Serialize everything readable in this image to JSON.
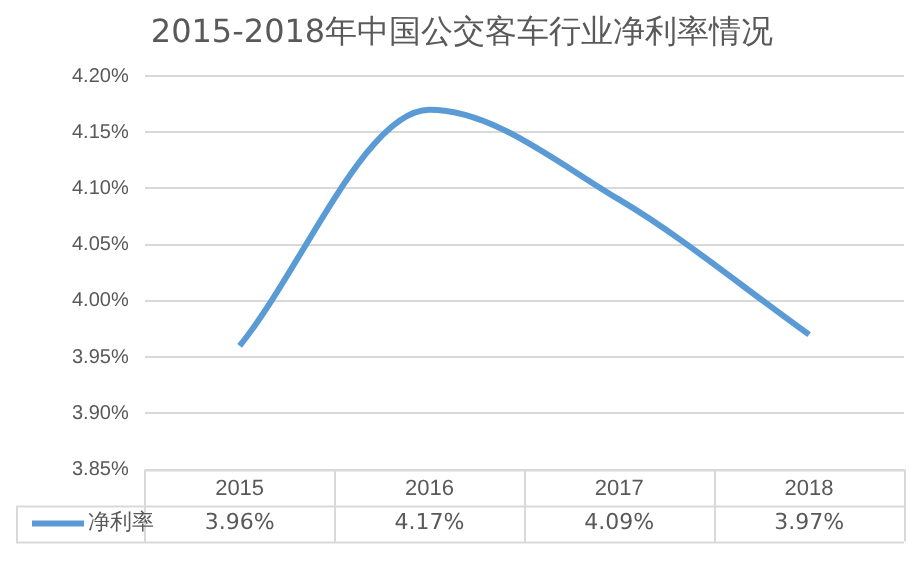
{
  "chart_data": {
    "type": "line",
    "title": "2015-2018年中国公交客车行业净利率情况",
    "categories": [
      "2015",
      "2016",
      "2017",
      "2018"
    ],
    "series": [
      {
        "name": "净利率",
        "color": "#5b9bd5",
        "values": [
          3.96,
          4.17,
          4.09,
          3.97
        ],
        "value_labels": [
          "3.96%",
          "4.17%",
          "4.09%",
          "3.97%"
        ]
      }
    ],
    "ylim": [
      3.85,
      4.2
    ],
    "yticks": [
      {
        "value": 3.85,
        "label": "3.85%"
      },
      {
        "value": 3.9,
        "label": "3.90%"
      },
      {
        "value": 3.95,
        "label": "3.95%"
      },
      {
        "value": 4.0,
        "label": "4.00%"
      },
      {
        "value": 4.05,
        "label": "4.05%"
      },
      {
        "value": 4.1,
        "label": "4.10%"
      },
      {
        "value": 4.15,
        "label": "4.15%"
      },
      {
        "value": 4.2,
        "label": "4.20%"
      }
    ],
    "grid": "y",
    "legend": "bottom left",
    "marker": "none",
    "line_style": "solid"
  }
}
